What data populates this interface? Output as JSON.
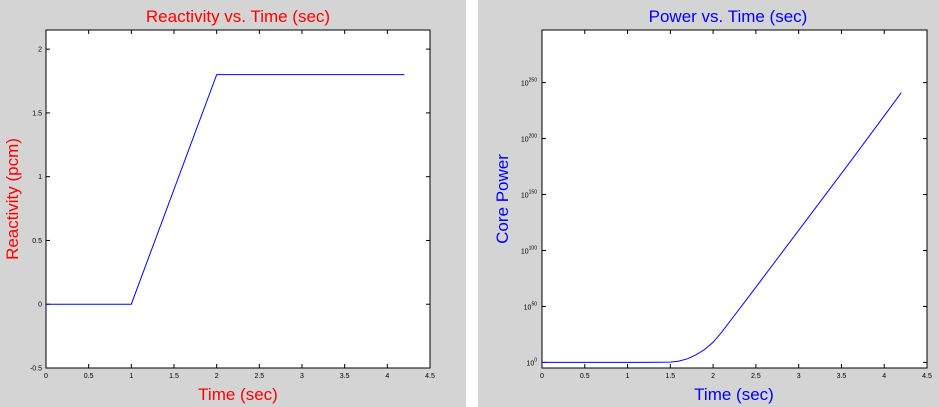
{
  "chart_data": [
    {
      "type": "line",
      "title": "Reactivity vs. Time (sec)",
      "xlabel": "Time (sec)",
      "ylabel": "Reactivity (pcm)",
      "title_color": "#ff0000",
      "line_color": "#0000ff",
      "xlim": [
        0,
        4.5
      ],
      "ylim": [
        -0.5,
        2.15
      ],
      "xticks": [
        "0",
        "0.5",
        "1",
        "1.5",
        "2",
        "2.5",
        "3",
        "3.5",
        "4",
        "4.5"
      ],
      "yticks": [
        "-0.5",
        "0",
        "0.5",
        "1",
        "1.5",
        "2"
      ],
      "series": [
        {
          "x": [
            0,
            1.0,
            2.0,
            4.2
          ],
          "y": [
            0,
            0,
            1.8,
            1.8
          ]
        }
      ]
    },
    {
      "type": "line",
      "title": "Power vs. Time (sec)",
      "xlabel": "Time (sec)",
      "ylabel": "Core Power",
      "title_color": "#0000ff",
      "line_color": "#0000ff",
      "y_scale": "log",
      "xlim": [
        0,
        4.5
      ],
      "ylim_exponent": [
        -5,
        297
      ],
      "xticks": [
        "0",
        "0.5",
        "1",
        "1.5",
        "2",
        "2.5",
        "3",
        "3.5",
        "4",
        "4.5"
      ],
      "yticks": [
        {
          "base": "10",
          "exp": "0"
        },
        {
          "base": "10",
          "exp": "50"
        },
        {
          "base": "10",
          "exp": "100"
        },
        {
          "base": "10",
          "exp": "150"
        },
        {
          "base": "10",
          "exp": "200"
        },
        {
          "base": "10",
          "exp": "250"
        }
      ],
      "series": [
        {
          "x": [
            0,
            1.2,
            1.5,
            1.6,
            1.7,
            1.8,
            1.9,
            2.0,
            2.1,
            2.2,
            2.4,
            3.0,
            3.6,
            4.2
          ],
          "y_exponent": [
            0,
            0,
            0.3,
            1.2,
            3.2,
            6.8,
            11.5,
            18,
            27,
            37,
            57,
            118,
            179,
            241
          ]
        }
      ]
    }
  ]
}
